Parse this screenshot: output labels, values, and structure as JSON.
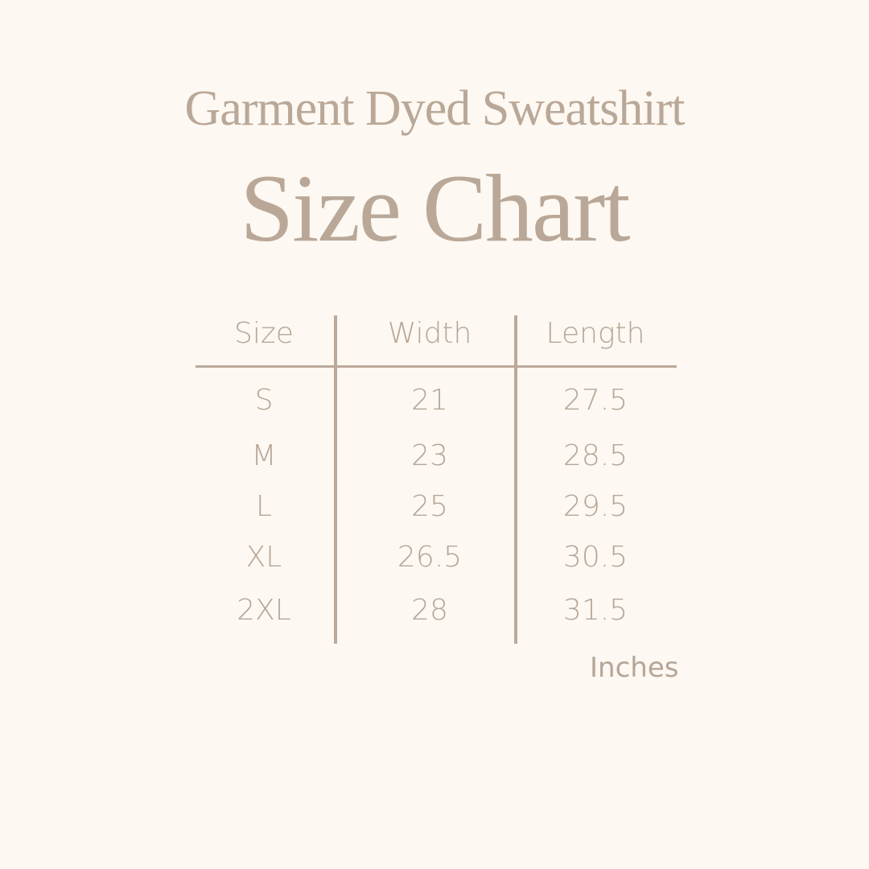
{
  "title": "Garment Dyed Sweatshirt",
  "subtitle": "Size Chart",
  "table": {
    "headers": [
      "Size",
      "Width",
      "Length"
    ],
    "rows": [
      [
        "S",
        "21",
        "27.5"
      ],
      [
        "M",
        "23",
        "28.5"
      ],
      [
        "L",
        "25",
        "29.5"
      ],
      [
        "XL",
        "26.5",
        "30.5"
      ],
      [
        "2XL",
        "28",
        "31.5"
      ]
    ]
  },
  "units": "Inches",
  "colors": {
    "background": "#fdf8f1",
    "text": "#b5a698",
    "lines": "#bba99a"
  }
}
